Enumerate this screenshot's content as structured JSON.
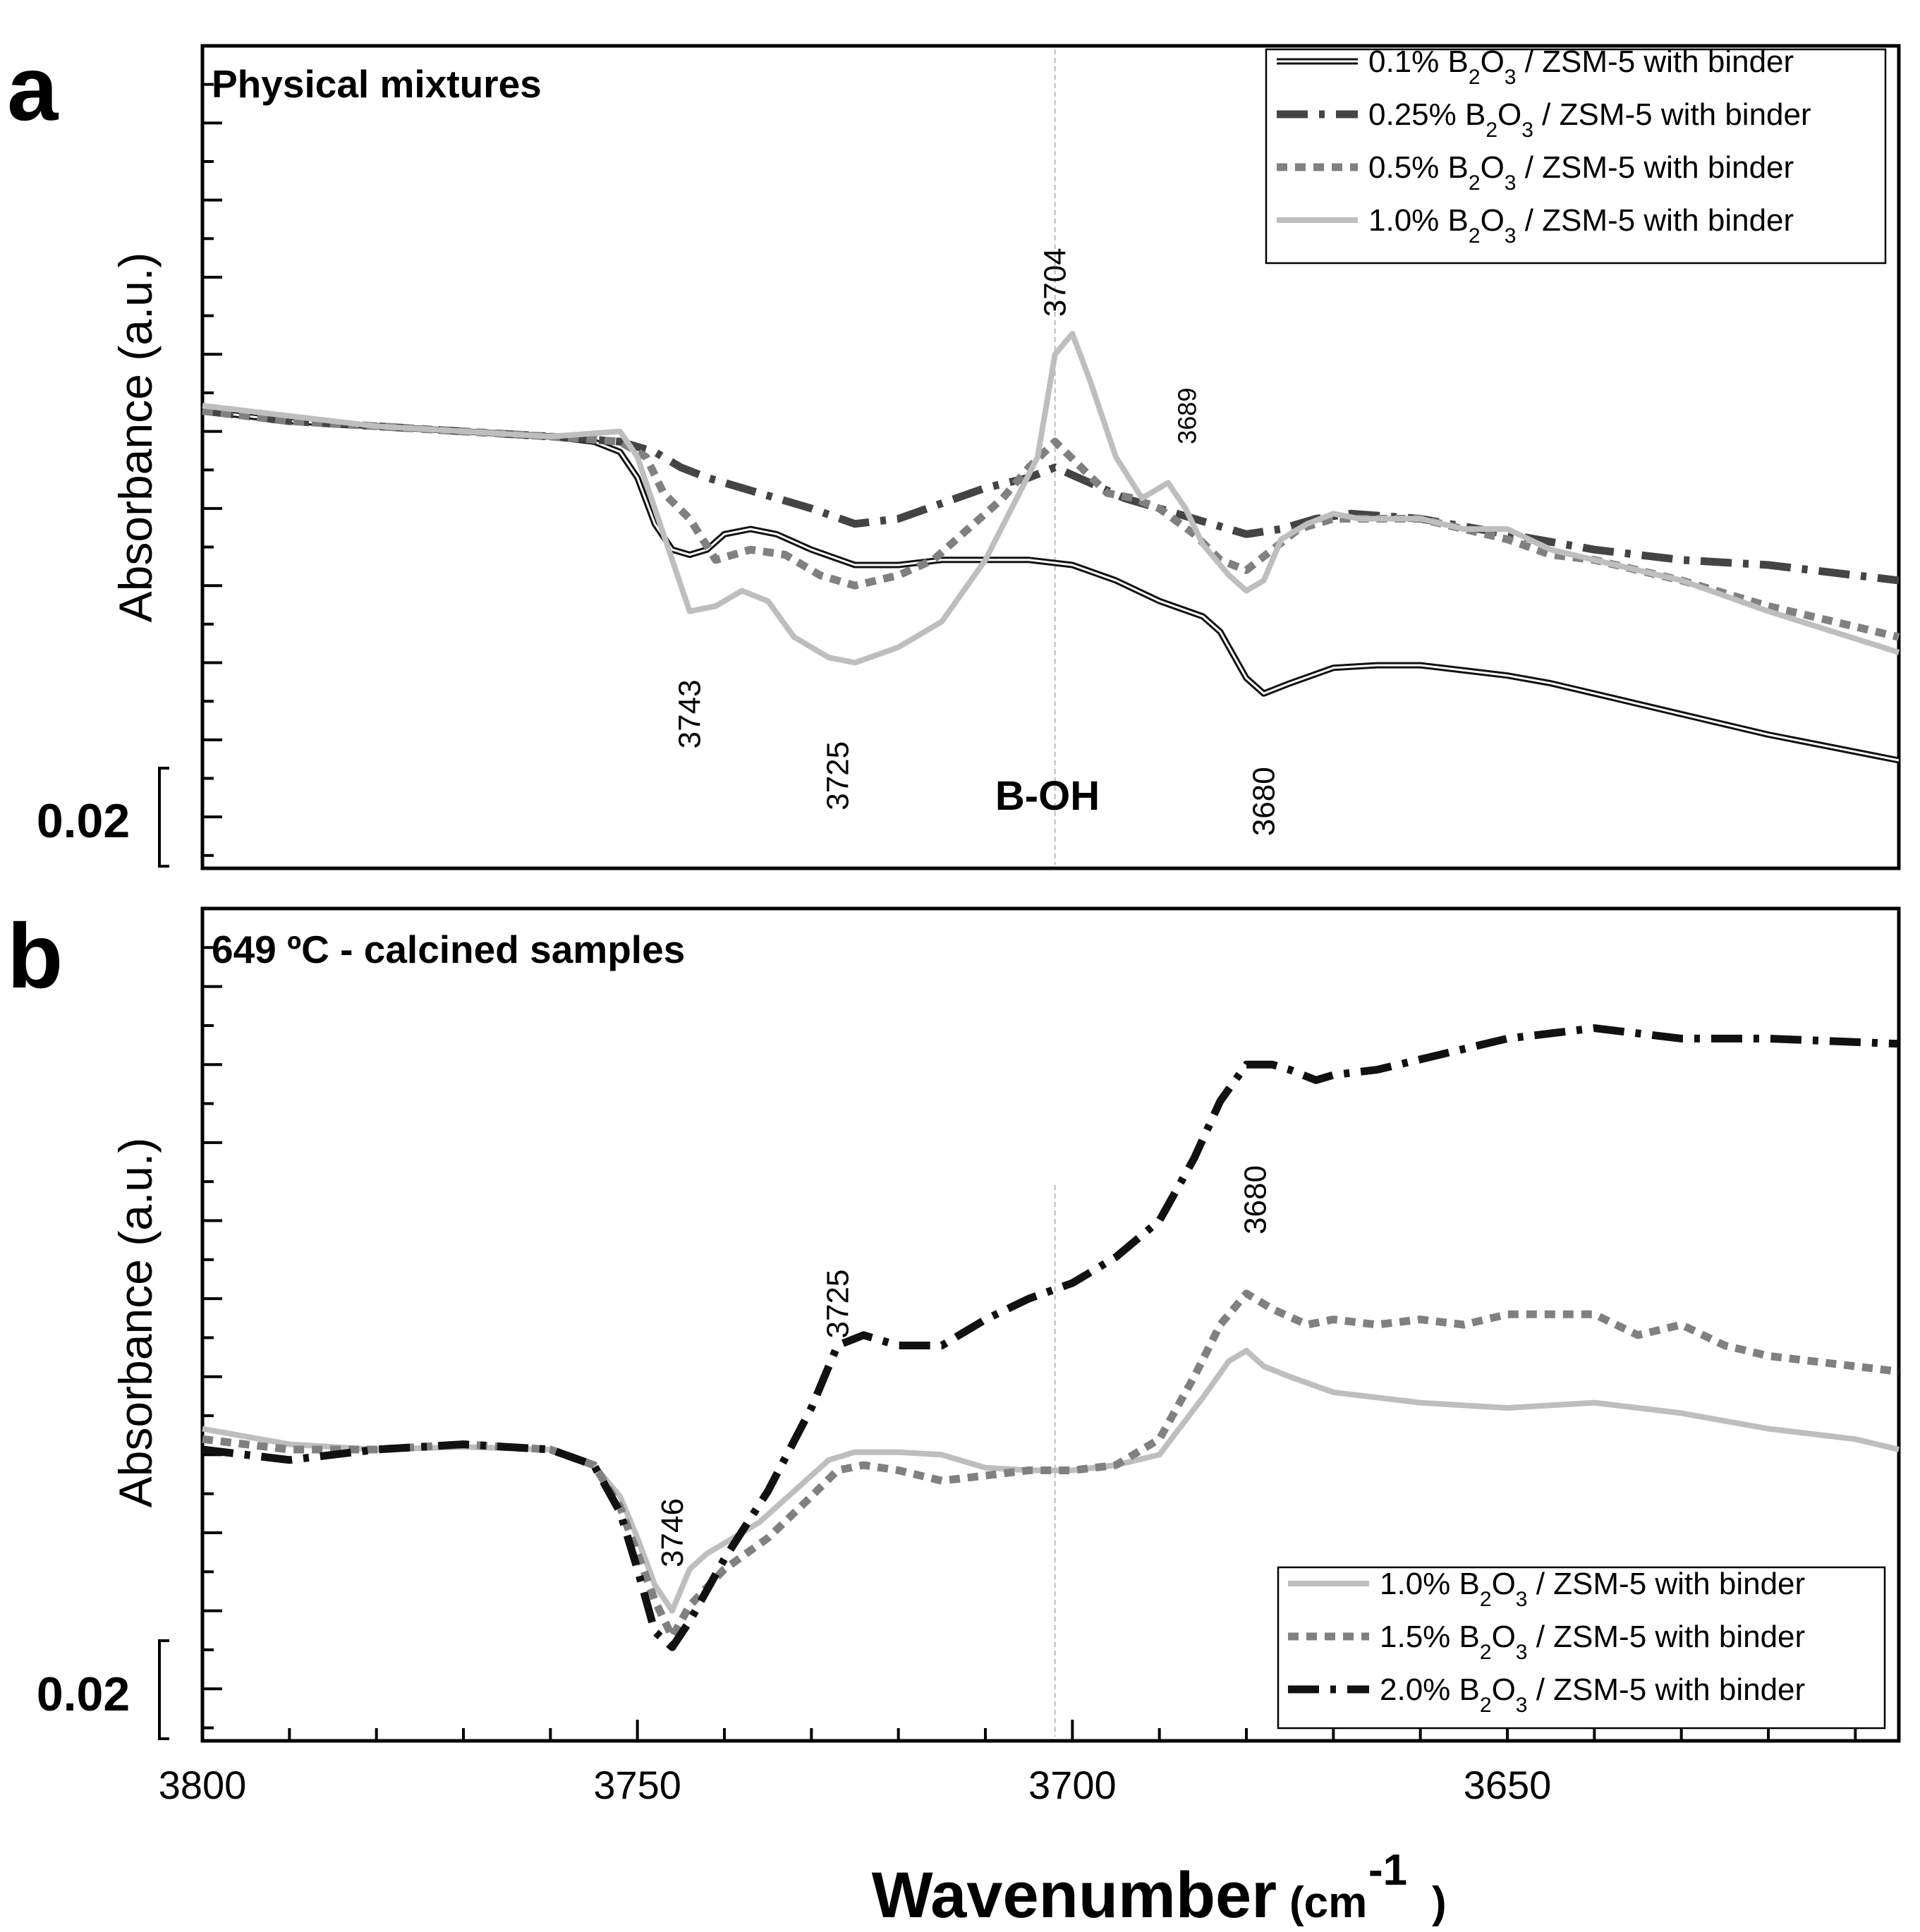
{
  "chart_data": [
    {
      "type": "line",
      "panel_label": "a",
      "title": "Physical mixtures",
      "xlabel": "Wavenumber",
      "xlabel_unit": "(cm",
      "xlabel_unit_exp": "-1",
      "xlabel_unit_close": ")",
      "ylabel": "Absorbance (a.u.)",
      "xlim": [
        3800,
        3605
      ],
      "x_ticks": [
        "3800",
        "3750",
        "3700",
        "3650"
      ],
      "ylim": [
        0,
        0.16
      ],
      "scale_bar": "0.02",
      "scale_bar_value": 0.02,
      "marker_line_x": 3702,
      "annotation_label": "B-OH",
      "peak_labels": [
        {
          "text": "3704",
          "x": 3702,
          "y": 0.114
        },
        {
          "text": "3689",
          "x": 3687,
          "y": 0.088
        },
        {
          "text": "3743",
          "x": 3744,
          "y": 0.03
        },
        {
          "text": "3725",
          "x": 3727,
          "y": 0.018
        },
        {
          "text": "3680",
          "x": 3678,
          "y": 0.013
        }
      ],
      "series": [
        {
          "name_pre": "0.1% B",
          "sub1": "2",
          "name_mid": "O",
          "sub2": "3",
          "name_post": " / ZSM-5 with binder",
          "style": "double",
          "color": "#111111",
          "x": [
            3800,
            3790,
            3780,
            3770,
            3760,
            3755,
            3752,
            3750,
            3748,
            3746,
            3744,
            3742,
            3740,
            3737,
            3734,
            3730,
            3725,
            3720,
            3715,
            3710,
            3705,
            3700,
            3695,
            3690,
            3685,
            3683,
            3680,
            3678,
            3675,
            3670,
            3665,
            3660,
            3655,
            3650,
            3645,
            3640,
            3630,
            3620,
            3605
          ],
          "y": [
            0.089,
            0.087,
            0.086,
            0.085,
            0.084,
            0.083,
            0.081,
            0.076,
            0.067,
            0.062,
            0.061,
            0.062,
            0.065,
            0.066,
            0.065,
            0.062,
            0.059,
            0.059,
            0.06,
            0.06,
            0.06,
            0.059,
            0.056,
            0.052,
            0.049,
            0.046,
            0.037,
            0.034,
            0.036,
            0.039,
            0.0395,
            0.0395,
            0.0385,
            0.0375,
            0.036,
            0.034,
            0.03,
            0.026,
            0.021
          ]
        },
        {
          "name_pre": "0.25% B",
          "sub1": "2",
          "name_mid": "O",
          "sub2": "3",
          "name_post": " / ZSM-5 with binder",
          "style": "dashdot",
          "color": "#444444",
          "x": [
            3800,
            3790,
            3780,
            3770,
            3760,
            3752,
            3748,
            3745,
            3742,
            3738,
            3734,
            3730,
            3725,
            3720,
            3715,
            3710,
            3705,
            3702,
            3698,
            3694,
            3690,
            3686,
            3680,
            3676,
            3672,
            3668,
            3660,
            3650,
            3640,
            3630,
            3620,
            3605
          ],
          "y": [
            0.089,
            0.087,
            0.086,
            0.085,
            0.084,
            0.083,
            0.081,
            0.078,
            0.076,
            0.074,
            0.072,
            0.07,
            0.067,
            0.068,
            0.071,
            0.074,
            0.076,
            0.078,
            0.075,
            0.072,
            0.07,
            0.068,
            0.065,
            0.066,
            0.068,
            0.069,
            0.068,
            0.065,
            0.062,
            0.06,
            0.059,
            0.056
          ]
        },
        {
          "name_pre": "0.5% B",
          "sub1": "2",
          "name_mid": "O",
          "sub2": "3",
          "name_post": " / ZSM-5 with binder",
          "style": "dotted",
          "color": "#808080",
          "x": [
            3800,
            3790,
            3780,
            3770,
            3760,
            3752,
            3749,
            3747,
            3744,
            3741,
            3737,
            3733,
            3729,
            3725,
            3720,
            3716,
            3712,
            3708,
            3705,
            3702,
            3699,
            3696,
            3693,
            3690,
            3686,
            3683,
            3680,
            3677,
            3674,
            3670,
            3665,
            3660,
            3655,
            3650,
            3645,
            3640,
            3630,
            3620,
            3605
          ],
          "y": [
            0.089,
            0.087,
            0.086,
            0.085,
            0.084,
            0.083,
            0.08,
            0.073,
            0.068,
            0.06,
            0.062,
            0.061,
            0.057,
            0.055,
            0.057,
            0.06,
            0.066,
            0.072,
            0.078,
            0.083,
            0.078,
            0.073,
            0.072,
            0.07,
            0.065,
            0.06,
            0.058,
            0.062,
            0.066,
            0.068,
            0.068,
            0.068,
            0.066,
            0.064,
            0.061,
            0.06,
            0.056,
            0.051,
            0.045
          ]
        },
        {
          "name_pre": "1.0% B",
          "sub1": "2",
          "name_mid": "O",
          "sub2": "3",
          "name_post": " / ZSM-5 with binder",
          "style": "solid",
          "color": "#bebebe",
          "x": [
            3800,
            3790,
            3780,
            3770,
            3760,
            3752,
            3750,
            3748,
            3746,
            3744,
            3741,
            3738,
            3735,
            3732,
            3728,
            3725,
            3720,
            3715,
            3710,
            3707,
            3704,
            3702,
            3700,
            3698,
            3695,
            3692,
            3689,
            3687,
            3685,
            3682,
            3680,
            3678,
            3676,
            3673,
            3670,
            3667,
            3660,
            3655,
            3650,
            3645,
            3640,
            3630,
            3620,
            3605
          ],
          "y": [
            0.09,
            0.088,
            0.086,
            0.085,
            0.084,
            0.085,
            0.08,
            0.07,
            0.06,
            0.05,
            0.051,
            0.054,
            0.052,
            0.045,
            0.041,
            0.04,
            0.043,
            0.048,
            0.06,
            0.07,
            0.08,
            0.1,
            0.104,
            0.095,
            0.08,
            0.072,
            0.075,
            0.07,
            0.063,
            0.057,
            0.054,
            0.056,
            0.064,
            0.067,
            0.069,
            0.068,
            0.068,
            0.066,
            0.066,
            0.062,
            0.06,
            0.056,
            0.05,
            0.042
          ]
        }
      ]
    },
    {
      "type": "line",
      "panel_label": "b",
      "title": "649 ºC - calcined samples",
      "xlabel": "Wavenumber",
      "ylabel": "Absorbance (a.u.)",
      "xlim": [
        3800,
        3605
      ],
      "x_ticks": [
        "3800",
        "3750",
        "3700",
        "3650"
      ],
      "ylim": [
        0,
        0.16
      ],
      "scale_bar": "0.02",
      "scale_bar_value": 0.02,
      "marker_line_x": 3702,
      "peak_labels": [
        {
          "text": "3746",
          "x": 3746,
          "y": 0.04
        },
        {
          "text": "3725",
          "x": 3727,
          "y": 0.084
        },
        {
          "text": "3680",
          "x": 3679,
          "y": 0.104
        }
      ],
      "series": [
        {
          "name_pre": "1.0% B",
          "sub1": "2",
          "name_mid": "O",
          "sub2": "3",
          "name_post": " / ZSM-5 with binder",
          "style": "solid",
          "color": "#bebebe",
          "x": [
            3800,
            3790,
            3780,
            3770,
            3760,
            3755,
            3752,
            3750,
            3748,
            3746,
            3744,
            3742,
            3740,
            3736,
            3732,
            3728,
            3725,
            3720,
            3715,
            3710,
            3705,
            3700,
            3695,
            3690,
            3685,
            3682,
            3680,
            3678,
            3675,
            3670,
            3660,
            3650,
            3640,
            3630,
            3620,
            3610,
            3605
          ],
          "y": [
            0.06,
            0.057,
            0.056,
            0.0565,
            0.056,
            0.053,
            0.047,
            0.039,
            0.03,
            0.025,
            0.033,
            0.036,
            0.038,
            0.042,
            0.048,
            0.054,
            0.0555,
            0.0555,
            0.055,
            0.0525,
            0.052,
            0.052,
            0.053,
            0.055,
            0.066,
            0.073,
            0.075,
            0.072,
            0.07,
            0.067,
            0.065,
            0.064,
            0.065,
            0.063,
            0.06,
            0.058,
            0.056
          ]
        },
        {
          "name_pre": "1.5% B",
          "sub1": "2",
          "name_mid": "O",
          "sub2": "3",
          "name_post": " / ZSM-5 with binder",
          "style": "dotted",
          "color": "#808080",
          "x": [
            3800,
            3790,
            3780,
            3770,
            3760,
            3755,
            3752,
            3750,
            3748,
            3746,
            3744,
            3740,
            3735,
            3730,
            3727,
            3724,
            3720,
            3715,
            3710,
            3705,
            3700,
            3695,
            3690,
            3686,
            3683,
            3680,
            3677,
            3673,
            3670,
            3665,
            3660,
            3655,
            3650,
            3645,
            3640,
            3635,
            3630,
            3625,
            3620,
            3605
          ],
          "y": [
            0.058,
            0.056,
            0.056,
            0.057,
            0.056,
            0.053,
            0.045,
            0.036,
            0.027,
            0.02,
            0.026,
            0.033,
            0.039,
            0.047,
            0.052,
            0.053,
            0.052,
            0.05,
            0.051,
            0.052,
            0.052,
            0.053,
            0.058,
            0.07,
            0.08,
            0.086,
            0.083,
            0.08,
            0.081,
            0.08,
            0.081,
            0.08,
            0.082,
            0.082,
            0.082,
            0.078,
            0.08,
            0.076,
            0.074,
            0.071
          ]
        },
        {
          "name_pre": "2.0% B",
          "sub1": "2",
          "name_mid": "O",
          "sub2": "3",
          "name_post": " / ZSM-5 with binder",
          "style": "dashdot",
          "color": "#111111",
          "x": [
            3800,
            3790,
            3780,
            3770,
            3760,
            3755,
            3752,
            3750,
            3748,
            3746,
            3744,
            3740,
            3735,
            3730,
            3727,
            3724,
            3720,
            3715,
            3710,
            3705,
            3700,
            3695,
            3690,
            3686,
            3683,
            3680,
            3677,
            3675,
            3672,
            3670,
            3665,
            3660,
            3655,
            3650,
            3645,
            3640,
            3635,
            3630,
            3620,
            3605
          ],
          "y": [
            0.056,
            0.054,
            0.056,
            0.057,
            0.056,
            0.053,
            0.044,
            0.033,
            0.021,
            0.018,
            0.023,
            0.035,
            0.048,
            0.064,
            0.076,
            0.078,
            0.076,
            0.076,
            0.081,
            0.085,
            0.088,
            0.093,
            0.1,
            0.112,
            0.123,
            0.13,
            0.13,
            0.129,
            0.127,
            0.128,
            0.129,
            0.131,
            0.133,
            0.135,
            0.136,
            0.137,
            0.136,
            0.135,
            0.135,
            0.134
          ]
        }
      ]
    }
  ]
}
